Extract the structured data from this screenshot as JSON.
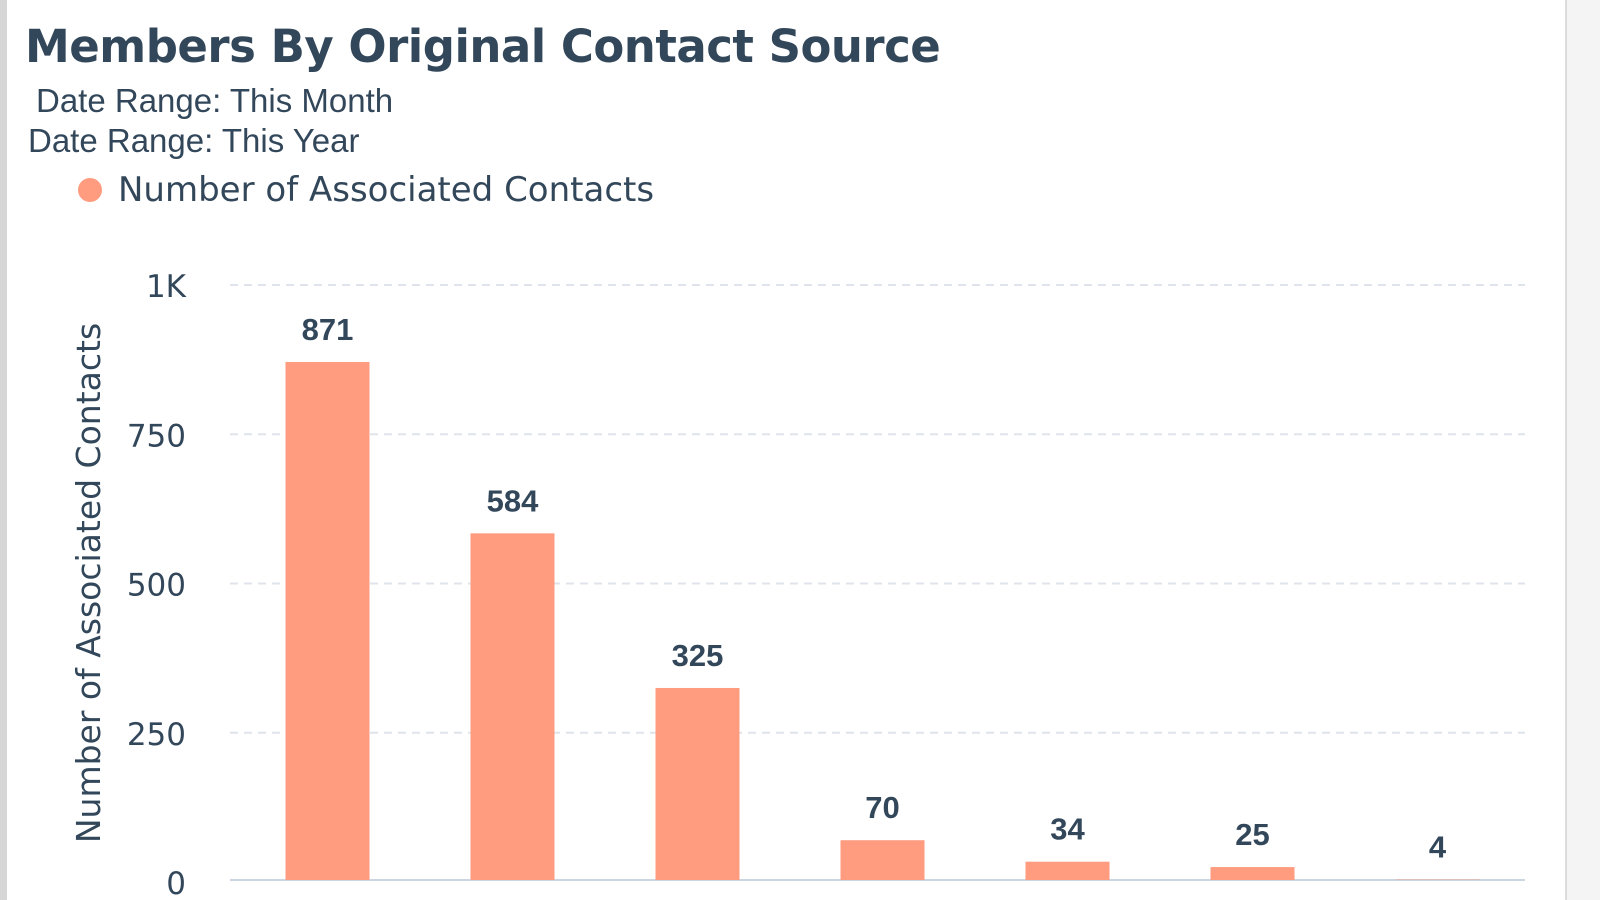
{
  "chart_data": {
    "type": "bar",
    "title": "Members By Original Contact Source",
    "subtitle": "Date Range: This Month",
    "subtitle_underlay": "Date Range: This Year",
    "legend": [
      "Number of Associated Contacts"
    ],
    "legend_placement": "top-left",
    "ylabel": "Number of Associated Contacts",
    "xlabel": "",
    "ylim": [
      0,
      1000
    ],
    "yticks": [
      0,
      250,
      500,
      750,
      1000
    ],
    "ytick_labels": [
      "0",
      "250",
      "500",
      "750",
      "1K"
    ],
    "grid": true,
    "values": [
      871,
      584,
      325,
      70,
      34,
      25,
      4
    ],
    "data_labels": [
      "871",
      "584",
      "325",
      "70",
      "34",
      "25",
      "4"
    ],
    "series": [
      {
        "name": "Number of Associated Contacts",
        "values": [
          871,
          584,
          325,
          70,
          34,
          25,
          4
        ]
      }
    ],
    "colors": {
      "bar": "#ff9b7f",
      "text": "#33475b",
      "grid": "#dfe3eb"
    }
  }
}
